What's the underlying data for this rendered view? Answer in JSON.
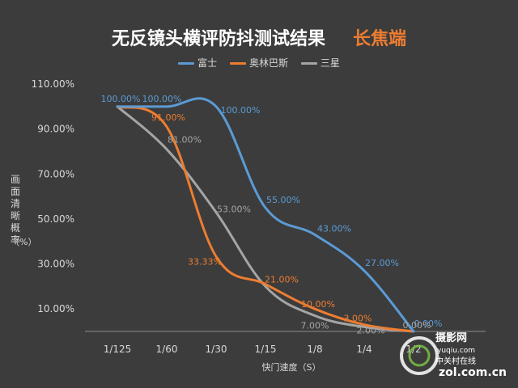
{
  "chart_data": {
    "type": "line",
    "title": "无反镜头横评防抖测试结果",
    "subtitle": "长焦端",
    "xlabel": "快门速度（S）",
    "ylabel": "画面清晰概率",
    "ylabel_unit": "（%）",
    "categories": [
      "1/125",
      "1/60",
      "1/30",
      "1/15",
      "1/8",
      "1/4",
      "1/2"
    ],
    "y_ticks": [
      "10.00%",
      "30.00%",
      "50.00%",
      "70.00%",
      "90.00%",
      "110.00%"
    ],
    "ylim": [
      0,
      110
    ],
    "grid": false,
    "legend_position": "top",
    "series": [
      {
        "name": "富士",
        "color": "#5b9bd5",
        "values": [
          100,
          100,
          100,
          55,
          43,
          27,
          0
        ],
        "labels": [
          "100.00%",
          "100.00%",
          "100.00%",
          "55.00%",
          "43.00%",
          "27.00%",
          "0.00%"
        ]
      },
      {
        "name": "奥林巴斯",
        "color": "#ed7d31",
        "values": [
          100,
          91,
          33.33,
          21,
          10,
          3,
          0
        ],
        "labels": [
          "",
          "91.00%",
          "33.33%",
          "21.00%",
          "10.00%",
          "3.00%",
          ""
        ]
      },
      {
        "name": "三星",
        "color": "#a5a5a5",
        "values": [
          100,
          81,
          53,
          20,
          7,
          2,
          0
        ],
        "labels": [
          "",
          "81.00%",
          "53.00%",
          "",
          "7.00%",
          "2.00%",
          "0.00%"
        ]
      }
    ]
  },
  "watermark": {
    "site_cn": "摄影网",
    "site_en": "yuqiu.com",
    "logo_text": "中关村在线",
    "domain": "zol.com.cn"
  }
}
